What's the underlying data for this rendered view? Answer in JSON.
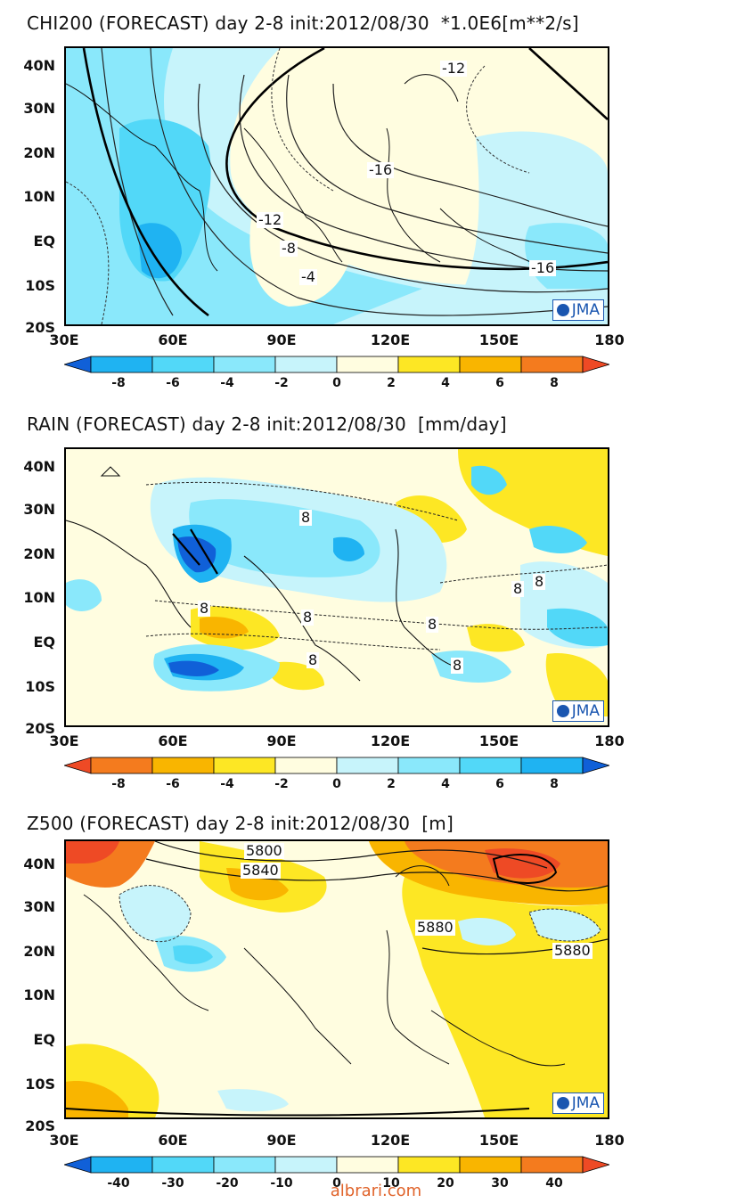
{
  "panels": [
    {
      "title": "CHI200 (FORECAST) day 2-8 init:2012/08/30  *1.0E6[m**2/s]",
      "colorbar_ticks": [
        "-8",
        "-6",
        "-4",
        "-2",
        "0",
        "2",
        "4",
        "6",
        "8"
      ],
      "contour_labels": [
        "-12",
        "-16",
        "-12",
        "-8",
        "-4",
        "-16"
      ],
      "colors": [
        "#1060d8",
        "#1fb3f2",
        "#52d8f8",
        "#8ae8fb",
        "#c7f4fb",
        "#fffde0",
        "#fde724",
        "#f9b500",
        "#f47b1e",
        "#ee4a25"
      ]
    },
    {
      "title": "RAIN (FORECAST) day 2-8 init:2012/08/30  [mm/day]",
      "colorbar_ticks": [
        "-8",
        "-6",
        "-4",
        "-2",
        "0",
        "2",
        "4",
        "6",
        "8"
      ],
      "contour_labels": [
        "8",
        "8",
        "8",
        "8",
        "8",
        "8",
        "8",
        "8"
      ],
      "colors": [
        "#ee4a25",
        "#f47b1e",
        "#f9b500",
        "#fde724",
        "#fffde0",
        "#c7f4fb",
        "#8ae8fb",
        "#52d8f8",
        "#1fb3f2",
        "#1060d8"
      ]
    },
    {
      "title": "Z500 (FORECAST) day 2-8 init:2012/08/30  [m]",
      "colorbar_ticks": [
        "-40",
        "-30",
        "-20",
        "-10",
        "0",
        "10",
        "20",
        "30",
        "40"
      ],
      "contour_labels": [
        "5800",
        "5840",
        "5880",
        "5880"
      ],
      "colors": [
        "#1060d8",
        "#1fb3f2",
        "#52d8f8",
        "#8ae8fb",
        "#c7f4fb",
        "#fffde0",
        "#fde724",
        "#f9b500",
        "#f47b1e",
        "#ee4a25"
      ]
    }
  ],
  "lat_labels": [
    "40N",
    "30N",
    "20N",
    "10N",
    "EQ",
    "10S",
    "20S"
  ],
  "lon_labels": [
    "30E",
    "60E",
    "90E",
    "120E",
    "150E",
    "180"
  ],
  "logo": "JMA",
  "watermark": "albrari.com"
}
